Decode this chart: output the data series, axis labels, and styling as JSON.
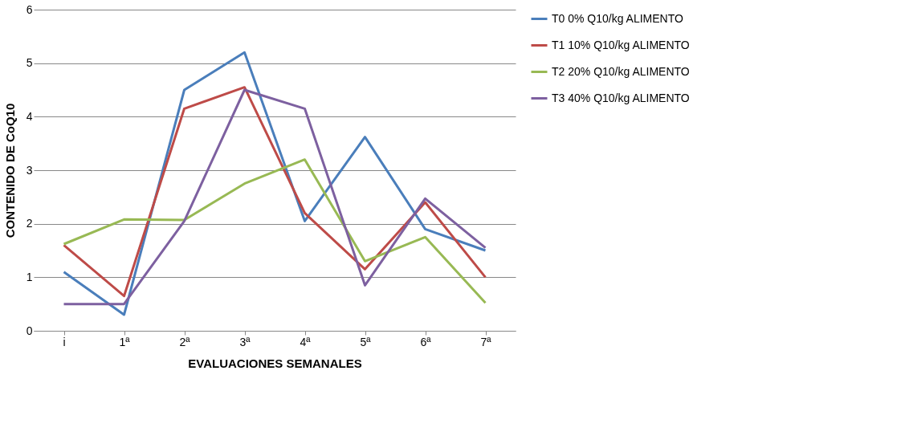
{
  "chart_data": {
    "type": "line",
    "xlabel": "EVALUACIONES SEMANALES",
    "ylabel": "CONTENIDO DE CoQ10",
    "categories": [
      "i",
      "1ª",
      "2ª",
      "3ª",
      "4ª",
      "5ª",
      "6ª",
      "7ª"
    ],
    "series": [
      {
        "name": "T0 0%  Q10/kg ALIMENTO",
        "color": "#4a7ebb",
        "values": [
          1.1,
          0.3,
          4.5,
          5.2,
          2.05,
          3.62,
          1.9,
          1.5
        ]
      },
      {
        "name": "T1 10% Q10/kg ALIMENTO",
        "color": "#be4b48",
        "values": [
          1.6,
          0.65,
          4.15,
          4.55,
          2.2,
          1.15,
          2.4,
          1.0
        ]
      },
      {
        "name": "T2 20% Q10/kg ALIMENTO",
        "color": "#98b954",
        "values": [
          1.62,
          2.08,
          2.07,
          2.75,
          3.2,
          1.3,
          1.75,
          0.52
        ]
      },
      {
        "name": "T3 40% Q10/kg ALIMENTO",
        "color": "#7d60a0",
        "values": [
          0.5,
          0.5,
          2.05,
          4.5,
          4.15,
          0.85,
          2.47,
          1.55
        ]
      }
    ],
    "ylim": [
      0,
      6
    ],
    "yticks": [
      0,
      1,
      2,
      3,
      4,
      5,
      6
    ],
    "grid": "y",
    "legend": "right",
    "marker": "none",
    "line_style": "solid"
  }
}
